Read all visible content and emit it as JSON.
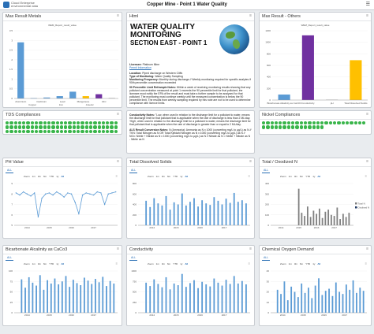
{
  "app": {
    "brand_line1": "Cloud Enterprise",
    "brand_line2": "environmental data",
    "title": "Copper Mine - Point 1 Water Quality",
    "menu_icon": "menu-icon"
  },
  "panels": {
    "max_metals": {
      "title": "Max Result Metals",
      "chart_data": {
        "type": "bar",
        "title": "WEM_Report_result_value",
        "categories": [
          "Aluminium",
          "Cadmium",
          "Lead",
          "Manganese",
          "Zinc",
          "Copper",
          "Iron",
          "Arsenic"
        ],
        "x_tick_labels": [
          "Aluminium",
          "Cadmium",
          "Lead",
          "Manganese",
          "Zinc"
        ],
        "x_tick_labels_row2": [
          "Copper",
          "Iron",
          "Arsenic"
        ],
        "values": [
          2.9,
          0.02,
          0.05,
          0.12,
          0.35,
          0.12,
          0.22,
          0.03
        ],
        "colors": [
          "#5b9bd5",
          "#5b9bd5",
          "#5b9bd5",
          "#5b9bd5",
          "#5b9bd5",
          "#ffc000",
          "#7030a0",
          "#c0c0c0"
        ],
        "y_ticks": [
          "0",
          "0.5",
          "1",
          "1.5",
          "2",
          "2.5",
          "3",
          "3.5"
        ],
        "ylim": [
          0,
          3.5
        ]
      }
    },
    "max_others": {
      "title": "Max Result - Others",
      "chart_data": {
        "type": "bar",
        "title": "WEM_Report_result_value",
        "categories": [
          "Bicarbonate Alkalinity as CaCO3",
          "Conductivity",
          "pH",
          "Total Dissolved Solids"
        ],
        "values": [
          95,
          1120,
          8,
          690
        ],
        "colors": [
          "#5b9bd5",
          "#7030a0",
          "#c0c0c0",
          "#ffc000"
        ],
        "y_ticks": [
          "0",
          "200",
          "400",
          "600",
          "800",
          "1000",
          "1200"
        ],
        "ylim": [
          0,
          1200
        ]
      }
    },
    "html": {
      "title": "Html",
      "wq_title_lines": [
        "WATER QUALITY",
        "MONITORING",
        "SECTION EAST - POINT 1"
      ],
      "license_label": "Licensee:",
      "license_value": " Platinum Mine",
      "permit_link": "Permit Information",
      "location_label": "Location:",
      "location_value": " Piped discharge on Western Cliffs",
      "type_label": "Type of Monitoring:",
      "type_value": " Water Quality Sampling",
      "freq_label": "Monitoring Frequency:",
      "freq_value": " Monthly during discharge // Weekly monitoring required for specific analytes if 90th percentile concentration exceeded",
      "p90_label": "90 Percentile Limit Reframple Notes:",
      "p90_value": " Within a week of receiving monitoring results showing that any pollutant concentration measured at point 1 exceeds the 90 percentile limit for that pollutant, the licensee must notify the EPA of the result and must take a further sample to be analysed for that pollutant. The monitoring must continue weekly until the measured concentration is below the 90 percentile limit. The results from weekly sampling required by this note are not to be used to determine compliance with licence limits.",
      "cond_label": "Conductivity Notes:",
      "cond_value": " \"Low, when used in relation to the discharge limit for a pollutant to water, means the discharge limit for that pollutant that is applicable when the rate of discharge is less than 2 ML/day. 'High', when used in relation to the discharge limit for a pollutant to water, means the discharge limit for that pollutant that is applicable when the rate of discharge is greater than or equal to 2 ML/day.",
      "als_label": "ALS Result Conversion Notes:",
      "als_value": " N (Ammonia): Ammonia as N x 1000 (converting mg/L to µg/L) as N // TKN: Total Nitrogen as N OR Total Kjeldahl Nitrogen as N x 1000 (converting mg/L to µg/L) as N // NOx: Nitrite + Nitrate as N x 1000 (converting mg/L to µg/L) as N // Nitrate as N = Nitrite + Nitrate as N - Nitrite as N"
    },
    "tds_compliances": {
      "title": "TDS Compliances",
      "count": 96
    },
    "nickel_compliances": {
      "title": "Nickel Compliances",
      "count": 40
    },
    "common": {
      "tab_all": "ALL",
      "zoom_buttons": [
        "Zoom",
        "1m",
        "3m",
        "6m",
        "YTD",
        "1y",
        "All"
      ],
      "years": [
        "2014",
        "2015",
        "2016",
        "2017"
      ]
    },
    "ph": {
      "title": "PH Value",
      "chart_data": {
        "type": "line",
        "color": "#5b9bd5",
        "y_ticks": [
          "5",
          "6",
          "7",
          "8",
          "9"
        ],
        "ylim": [
          5,
          9
        ],
        "x": [
          "2013-07",
          "2013-09",
          "2013-11",
          "2014-01",
          "2014-03",
          "2014-05",
          "2014-07",
          "2014-09",
          "2014-11",
          "2015-01",
          "2015-03",
          "2015-05",
          "2015-07",
          "2015-09",
          "2015-11",
          "2016-01",
          "2016-03",
          "2016-05",
          "2016-07",
          "2016-09",
          "2016-11",
          "2017-01",
          "2017-03",
          "2017-05",
          "2017-07",
          "2017-09",
          "2017-11",
          "2018-01"
        ],
        "values": [
          8.1,
          7.9,
          8.2,
          8.0,
          7.8,
          8.1,
          5.8,
          7.6,
          8.0,
          8.1,
          7.9,
          8.2,
          8.0,
          7.7,
          8.1,
          8.0,
          7.2,
          6.1,
          7.9,
          8.1,
          8.0,
          7.9,
          8.2,
          8.1,
          7.0,
          8.0,
          8.1,
          8.2
        ]
      }
    },
    "tds": {
      "title": "Total Dissolved Solids",
      "chart_data": {
        "type": "bar",
        "color": "#5b9bd5",
        "y_ticks": [
          "0",
          "200",
          "400",
          "600",
          "800"
        ],
        "ylim": [
          0,
          800
        ],
        "x": [
          "2013-10",
          "2013-12",
          "2014-02",
          "2014-04",
          "2014-06",
          "2014-08",
          "2014-10",
          "2014-12",
          "2015-02",
          "2015-04",
          "2015-06",
          "2015-08",
          "2015-10",
          "2015-12",
          "2016-02",
          "2016-04",
          "2016-06",
          "2016-08",
          "2016-10",
          "2016-12",
          "2017-02",
          "2017-04",
          "2017-06",
          "2017-08",
          "2017-10",
          "2017-12"
        ],
        "values": [
          470,
          350,
          520,
          420,
          380,
          560,
          300,
          440,
          400,
          610,
          380,
          450,
          520,
          360,
          480,
          420,
          390,
          540,
          470,
          400,
          510,
          430,
          620,
          450,
          480,
          420
        ]
      }
    },
    "total_n": {
      "title": "Total / Oxodized N",
      "chart_data": {
        "type": "bar",
        "series": [
          {
            "name": "Total N",
            "color": "#808080"
          },
          {
            "name": "Oxidised N",
            "color": "#1f3864"
          }
        ],
        "y_ticks": [
          "0",
          "100",
          "200",
          "300",
          "400"
        ],
        "ylim": [
          0,
          400
        ],
        "x": [
          "2015-01",
          "2015-03",
          "2015-05",
          "2015-07",
          "2015-09",
          "2015-11",
          "2016-01",
          "2016-03",
          "2016-05",
          "2016-07",
          "2016-09",
          "2016-11",
          "2017-01",
          "2017-03",
          "2017-05",
          "2017-07",
          "2017-09",
          "2017-11"
        ],
        "values": [
          350,
          120,
          90,
          180,
          80,
          140,
          110,
          160,
          70,
          130,
          150,
          100,
          90,
          170,
          60,
          110,
          80,
          120
        ]
      }
    },
    "bicarb": {
      "title": "Bicarbonate Alcalinity as CaCo3",
      "chart_data": {
        "type": "bar",
        "color": "#5b9bd5",
        "y_ticks": [
          "0",
          "25",
          "50",
          "75",
          "100"
        ],
        "ylim": [
          0,
          100
        ],
        "x": [
          "2013-10",
          "2013-12",
          "2014-02",
          "2014-04",
          "2014-06",
          "2014-08",
          "2014-10",
          "2014-12",
          "2015-02",
          "2015-04",
          "2015-06",
          "2015-08",
          "2015-10",
          "2015-12",
          "2016-02",
          "2016-04",
          "2016-06",
          "2016-08",
          "2016-10",
          "2016-12",
          "2017-02",
          "2017-04",
          "2017-06",
          "2017-08",
          "2017-10",
          "2017-12"
        ],
        "values": [
          80,
          60,
          85,
          72,
          65,
          90,
          55,
          78,
          70,
          82,
          68,
          75,
          88,
          62,
          79,
          71,
          66,
          84,
          77,
          69,
          81,
          73,
          86,
          64,
          76,
          70
        ]
      }
    },
    "conductivity": {
      "title": "Conductivity",
      "chart_data": {
        "type": "bar",
        "color": "#5b9bd5",
        "y_ticks": [
          "0",
          "250",
          "500",
          "750",
          "1000"
        ],
        "ylim": [
          0,
          1000
        ],
        "x": [
          "2013-10",
          "2013-12",
          "2014-02",
          "2014-04",
          "2014-06",
          "2014-08",
          "2014-10",
          "2014-12",
          "2015-02",
          "2015-04",
          "2015-06",
          "2015-08",
          "2015-10",
          "2015-12",
          "2016-02",
          "2016-04",
          "2016-06",
          "2016-08",
          "2016-10",
          "2016-12",
          "2017-02",
          "2017-04",
          "2017-06",
          "2017-08",
          "2017-10",
          "2017-12"
        ],
        "values": [
          720,
          640,
          800,
          690,
          610,
          850,
          560,
          700,
          660,
          930,
          620,
          710,
          780,
          590,
          740,
          680,
          630,
          820,
          720,
          650,
          790,
          690,
          880,
          700,
          760,
          680
        ]
      }
    },
    "cod": {
      "title": "Chemical Oxygen Demand",
      "chart_data": {
        "type": "bar",
        "color": "#5b9bd5",
        "y_ticks": [
          "0",
          "10",
          "20",
          "30",
          "40"
        ],
        "ylim": [
          0,
          40
        ],
        "x": [
          "2013-10",
          "2013-12",
          "2014-02",
          "2014-04",
          "2014-06",
          "2014-08",
          "2014-10",
          "2014-12",
          "2015-02",
          "2015-04",
          "2015-06",
          "2015-08",
          "2015-10",
          "2015-12",
          "2016-02",
          "2016-04",
          "2016-06",
          "2016-08",
          "2016-10",
          "2016-12",
          "2017-02",
          "2017-04",
          "2017-06",
          "2017-08",
          "2017-10",
          "2017-12"
        ],
        "values": [
          22,
          18,
          30,
          12,
          25,
          20,
          15,
          28,
          19,
          24,
          14,
          26,
          33,
          17,
          21,
          23,
          16,
          29,
          20,
          18,
          27,
          22,
          31,
          19,
          24,
          21
        ]
      }
    }
  }
}
